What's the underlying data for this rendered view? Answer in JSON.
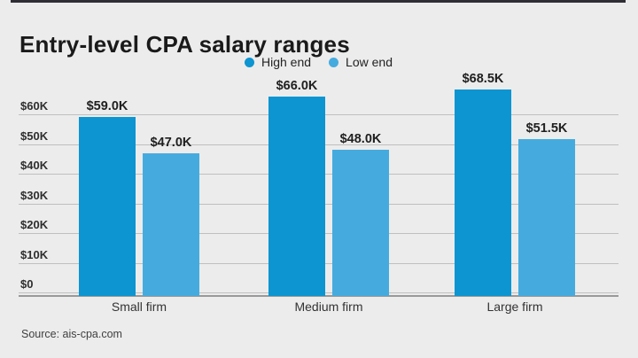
{
  "page": {
    "title": "Entry-level CPA salary ranges",
    "source": "Source: ais-cpa.com"
  },
  "colors": {
    "high_end": "#0c95d1",
    "low_end": "#45abde",
    "background": "#ececec"
  },
  "chart_data": {
    "type": "bar",
    "title": "Entry-level CPA salary ranges",
    "categories": [
      "Small firm",
      "Medium firm",
      "Large firm"
    ],
    "series": [
      {
        "name": "High end",
        "color": "#0c95d1",
        "values": [
          59.0,
          66.0,
          68.5
        ],
        "labels": [
          "$59.0K",
          "$66.0K",
          "$68.5K"
        ]
      },
      {
        "name": "Low end",
        "color": "#45abde",
        "values": [
          47.0,
          48.0,
          51.5
        ],
        "labels": [
          "$47.0K",
          "$48.0K",
          "$51.5K"
        ]
      }
    ],
    "y_ticks": [
      "$0",
      "$10K",
      "$20K",
      "$30K",
      "$40K",
      "$50K",
      "$60K"
    ],
    "y_tick_values": [
      0,
      10,
      20,
      30,
      40,
      50,
      60
    ],
    "ylim": [
      0,
      60
    ],
    "unit": "USD thousands",
    "grid": true,
    "legend_position": "top-center",
    "source": "Source: ais-cpa.com"
  }
}
